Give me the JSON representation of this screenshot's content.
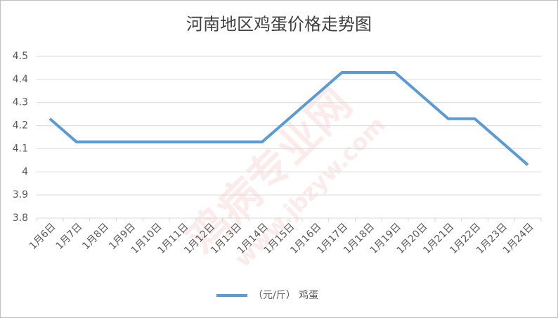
{
  "chart_data": {
    "type": "line",
    "title": "河南地区鸡蛋价格走势图",
    "categories": [
      "1月6日",
      "1月7日",
      "1月8日",
      "1月9日",
      "1月10日",
      "1月11日",
      "1月12日",
      "1月13日",
      "1月14日",
      "1月15日",
      "1月16日",
      "1月17日",
      "1月18日",
      "1月19日",
      "1月20日",
      "1月21日",
      "1月22日",
      "1月23日",
      "1月24日"
    ],
    "series": [
      {
        "name": "（元/斤） 鸡蛋",
        "color": "#5b9bd5",
        "values": [
          4.23,
          4.13,
          4.13,
          4.13,
          4.13,
          4.13,
          4.13,
          4.13,
          4.13,
          4.23,
          4.33,
          4.43,
          4.43,
          4.43,
          4.33,
          4.23,
          4.23,
          4.13,
          4.03
        ]
      }
    ],
    "ylim": [
      3.8,
      4.5
    ],
    "yticks": [
      3.8,
      3.9,
      4,
      4.1,
      4.2,
      4.3,
      4.4,
      4.5
    ],
    "grid": true,
    "legend": "bottom",
    "watermark": [
      "鸡病专业网",
      "www.jbzyw.com"
    ]
  }
}
